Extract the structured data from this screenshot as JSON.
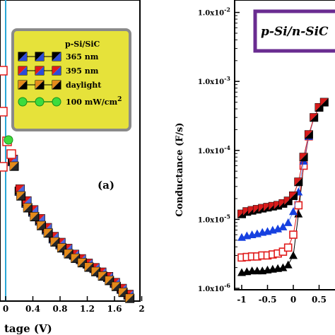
{
  "chart_data": [
    {
      "type": "line",
      "panel_label": "(a)",
      "xlabel": "tage (V)",
      "x_ticks": [
        "0",
        "0.4",
        "0.8",
        "1.2",
        "1.6",
        "2"
      ],
      "xlim": [
        -0.2,
        2.0
      ],
      "ylim": [
        0,
        1
      ],
      "legend": {
        "title": "p-Si/SiC",
        "entries": [
          "365 nm",
          "395 nm",
          "daylight",
          "100 mW/cm2"
        ]
      },
      "colors": {
        "legend_bg": "#e6e23a",
        "legend_border": "#8a8a8a",
        "vline": "#2aa7d6",
        "sun": "#3ddc3d"
      },
      "series": [
        {
          "name": "365 nm",
          "x": [
            0.1,
            0.2,
            0.3,
            0.4,
            0.5,
            0.6,
            0.7,
            0.8,
            0.9,
            1.0,
            1.1,
            1.2,
            1.3,
            1.4,
            1.5,
            1.6,
            1.7,
            1.8
          ],
          "y": [
            0.47,
            0.37,
            0.33,
            0.3,
            0.27,
            0.24,
            0.21,
            0.19,
            0.17,
            0.155,
            0.14,
            0.125,
            0.11,
            0.095,
            0.08,
            0.06,
            0.04,
            0.02
          ]
        },
        {
          "name": "395 nm",
          "x": [
            0.1,
            0.2,
            0.3,
            0.4,
            0.5,
            0.6,
            0.7,
            0.8,
            0.9,
            1.0,
            1.1,
            1.2,
            1.3,
            1.4,
            1.5,
            1.6,
            1.7,
            1.8
          ],
          "y": [
            0.48,
            0.38,
            0.34,
            0.31,
            0.28,
            0.25,
            0.22,
            0.2,
            0.18,
            0.16,
            0.145,
            0.13,
            0.115,
            0.1,
            0.085,
            0.065,
            0.045,
            0.025
          ]
        },
        {
          "name": "daylight",
          "x": [
            0.1,
            0.2,
            0.3,
            0.4,
            0.5,
            0.6,
            0.7,
            0.8,
            0.9,
            1.0,
            1.1,
            1.2,
            1.3,
            1.4,
            1.5,
            1.6,
            1.7,
            1.8
          ],
          "y": [
            0.46,
            0.36,
            0.32,
            0.29,
            0.26,
            0.235,
            0.205,
            0.185,
            0.165,
            0.15,
            0.135,
            0.12,
            0.105,
            0.09,
            0.075,
            0.055,
            0.035,
            0.015
          ]
        },
        {
          "name": "100 mW/cm2",
          "x": [
            -0.2,
            -0.1,
            0.0
          ],
          "y": [
            0.69,
            0.67,
            0.66
          ]
        }
      ]
    },
    {
      "type": "scatter",
      "ylabel": "Conductance (F/s)",
      "title_box": "p-Si/n-SiC",
      "y_scale": "log",
      "x_ticks": [
        "-1",
        "-0.5",
        "0",
        "0.5"
      ],
      "y_ticks": [
        "1.0x10-6",
        "1.0x10-5",
        "1.0x10-4",
        "1.0x10-3",
        "1.0x10-2"
      ],
      "xlim": [
        -1.1,
        0.65
      ],
      "ylim": [
        1e-06,
        0.01
      ],
      "colors": {
        "title_border": "#6a2c91",
        "title_bg": "#dfe8c2"
      },
      "series": [
        {
          "name": "black",
          "marker": "triangle",
          "color": "#000000",
          "x": [
            -1.0,
            -0.9,
            -0.8,
            -0.7,
            -0.6,
            -0.5,
            -0.4,
            -0.3,
            -0.2,
            -0.1,
            0.0,
            0.1,
            0.2,
            0.3,
            0.4,
            0.5,
            0.6
          ],
          "y": [
            1.7e-06,
            1.75e-06,
            1.8e-06,
            1.8e-06,
            1.8e-06,
            1.85e-06,
            1.9e-06,
            1.95e-06,
            2e-06,
            2.2e-06,
            3e-06,
            1.2e-05,
            6e-05,
            0.00016,
            0.0003,
            0.00042,
            0.0005
          ]
        },
        {
          "name": "red",
          "marker": "square-open",
          "color": "#e01b1b",
          "x": [
            -1.0,
            -0.9,
            -0.8,
            -0.7,
            -0.6,
            -0.5,
            -0.4,
            -0.3,
            -0.2,
            -0.1,
            0.0,
            0.1,
            0.2,
            0.3,
            0.4,
            0.5,
            0.6
          ],
          "y": [
            2.8e-06,
            2.85e-06,
            2.9e-06,
            2.9e-06,
            3e-06,
            3e-06,
            3.1e-06,
            3.2e-06,
            3.4e-06,
            3.9e-06,
            6e-06,
            1.6e-05,
            6e-05,
            0.00016,
            0.0003,
            0.00042,
            0.0005
          ]
        },
        {
          "name": "blue",
          "marker": "triangle",
          "color": "#1640e0",
          "x": [
            -1.0,
            -0.9,
            -0.8,
            -0.7,
            -0.6,
            -0.5,
            -0.4,
            -0.3,
            -0.2,
            -0.1,
            0.0,
            0.1,
            0.2,
            0.3,
            0.4,
            0.5,
            0.6
          ],
          "y": [
            5.5e-06,
            5.8e-06,
            6e-06,
            6.2e-06,
            6.5e-06,
            6.7e-06,
            7e-06,
            7.3e-06,
            7.8e-06,
            9e-06,
            1.3e-05,
            2.5e-05,
            7e-05,
            0.00016,
            0.0003,
            0.00042,
            0.0005
          ]
        },
        {
          "name": "red-black",
          "marker": "square-half",
          "color": "#d81b1b",
          "x": [
            -1.0,
            -0.9,
            -0.8,
            -0.7,
            -0.6,
            -0.5,
            -0.4,
            -0.3,
            -0.2,
            -0.1,
            0.0,
            0.1,
            0.2,
            0.3,
            0.4,
            0.5,
            0.6
          ],
          "y": [
            1.2e-05,
            1.3e-05,
            1.35e-05,
            1.4e-05,
            1.45e-05,
            1.5e-05,
            1.55e-05,
            1.6e-05,
            1.7e-05,
            1.85e-05,
            2.2e-05,
            3.5e-05,
            8e-05,
            0.00017,
            0.0003,
            0.00042,
            0.0005
          ]
        }
      ]
    }
  ]
}
